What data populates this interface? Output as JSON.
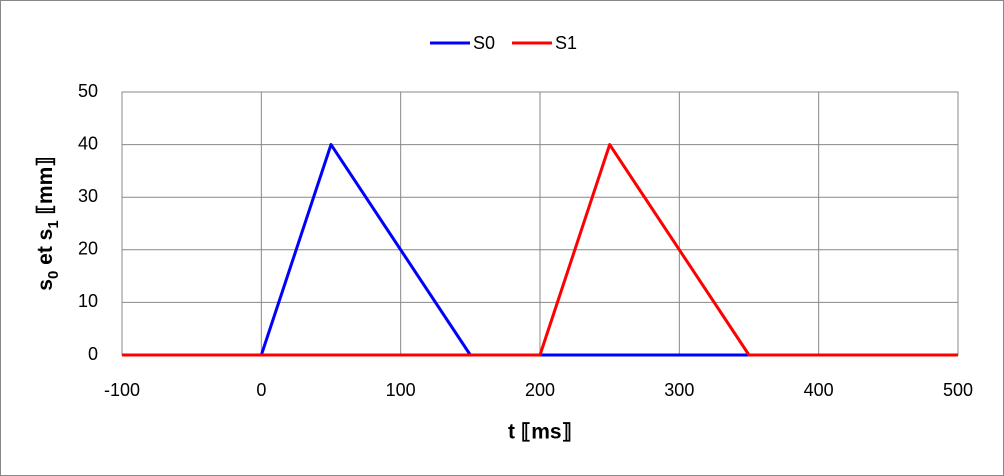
{
  "chart_data": {
    "type": "line",
    "xlabel": "t ⟦ms⟧",
    "ylabel": [
      "s",
      "0",
      " et s",
      "1",
      " ⟦mm⟧"
    ],
    "series": [
      {
        "name": "S0",
        "color": "#0000ff",
        "x": [
          -100,
          0,
          50,
          150,
          500
        ],
        "values": [
          0,
          0,
          40,
          0,
          0
        ]
      },
      {
        "name": "S1",
        "color": "#ff0000",
        "x": [
          -100,
          200,
          250,
          350,
          500
        ],
        "values": [
          0,
          0,
          40,
          0,
          0
        ]
      }
    ],
    "xlim": [
      -100,
      500
    ],
    "xticks": [
      -100,
      0,
      100,
      200,
      300,
      400,
      500
    ],
    "ylim": [
      0,
      50
    ],
    "yticks": [
      0,
      10,
      20,
      30,
      40,
      50
    ],
    "grid": true,
    "legend": "top"
  }
}
